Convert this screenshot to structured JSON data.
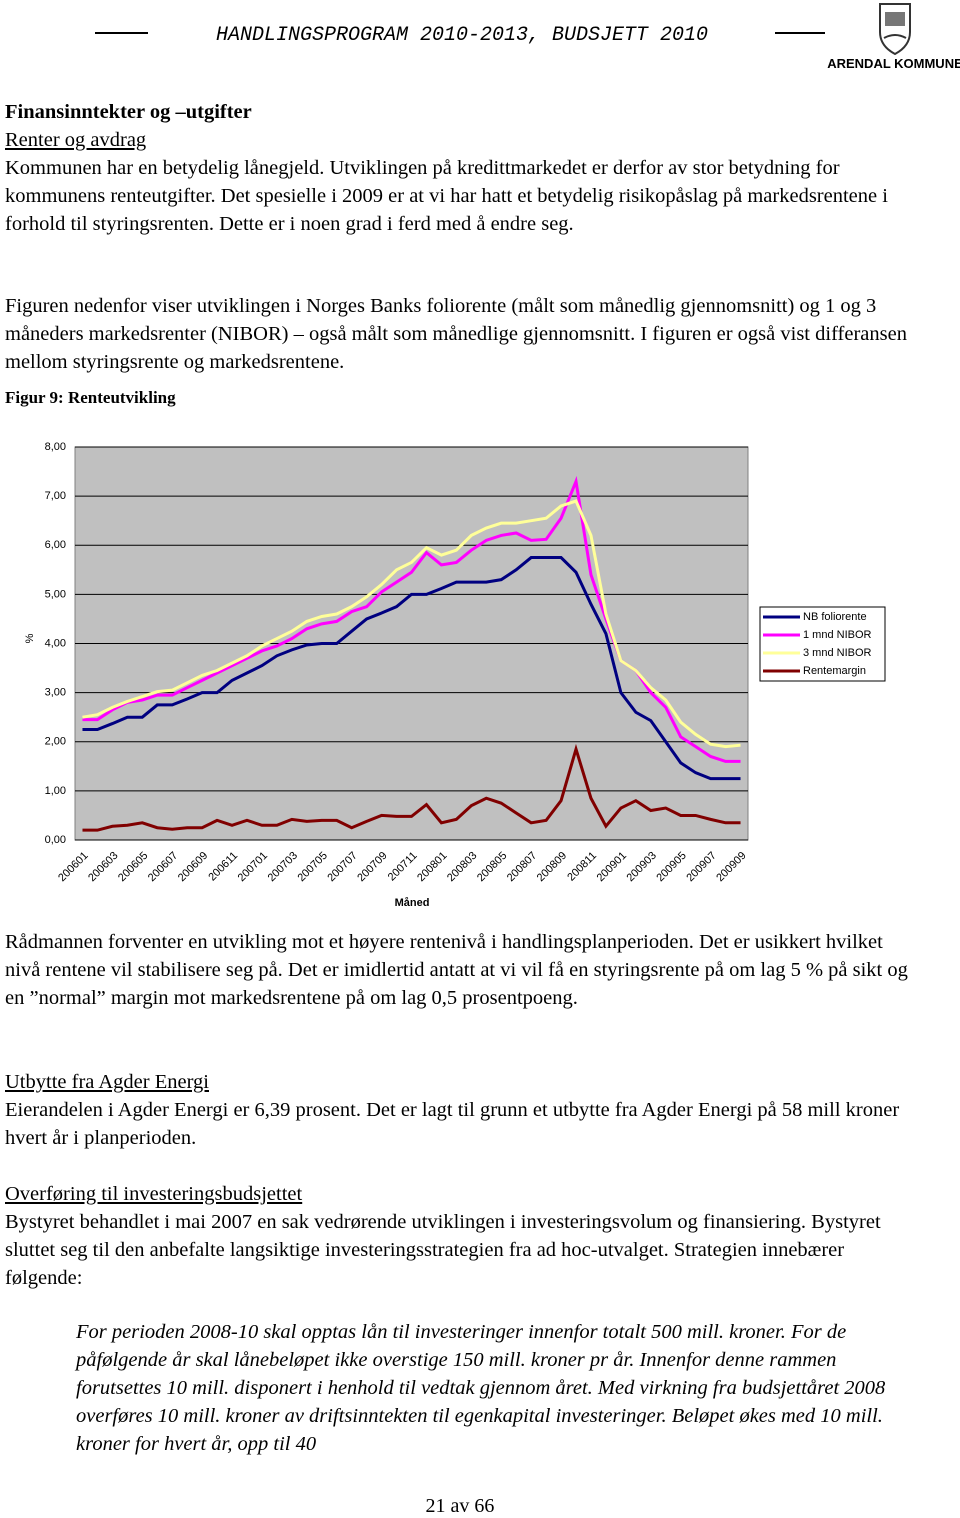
{
  "header": {
    "title": "HANDLINGSPROGRAM 2010-2013, BUDSJETT 2010",
    "logo_text": "ARENDAL KOMMUNE"
  },
  "heading": "Finansinntekter og –utgifter",
  "subheading": "Renter og avdrag",
  "paragraphs": [
    "Kommunen har en betydelig lånegjeld. Utviklingen på kredittmarkedet er derfor av stor betydning for kommunens renteutgifter. Det spesielle i 2009 er at vi har hatt et betydelig risikopåslag på markedsrentene i forhold til styringsrenten. Dette er i noen grad i ferd med å endre seg.",
    "Figuren nedenfor viser utviklingen i Norges Banks foliorente (målt som månedlig gjennomsnitt) og 1 og 3 måneders markedsrenter (NIBOR) – også målt som månedlige gjennomsnitt. I figuren er også vist differansen mellom styringsrente og markedsrentene."
  ],
  "figure_caption": "Figur 9: Renteutvikling",
  "chart_data": {
    "type": "line",
    "y_label": "%",
    "x_label": "Måned",
    "legend": "right",
    "grid": true,
    "plot_background": "#c0c0c0",
    "categories": [
      "200601",
      null,
      "200603",
      null,
      "200605",
      null,
      "200607",
      null,
      "200609",
      null,
      "200611",
      null,
      "200701",
      null,
      "200703",
      null,
      "200705",
      null,
      "200707",
      null,
      "200709",
      null,
      "200711",
      null,
      "200801",
      null,
      "200803",
      null,
      "200805",
      null,
      "200807",
      null,
      "200809",
      null,
      "200811",
      null,
      "200901",
      null,
      "200903",
      null,
      "200905",
      null,
      "200907",
      null,
      "200909"
    ],
    "ylim": [
      0,
      8
    ],
    "yticks": [
      {
        "value": 0,
        "label": "0,00"
      },
      {
        "value": 1,
        "label": "1,00"
      },
      {
        "value": 2,
        "label": "2,00"
      },
      {
        "value": 3,
        "label": "3,00"
      },
      {
        "value": 4,
        "label": "4,00"
      },
      {
        "value": 5,
        "label": "5,00"
      },
      {
        "value": 6,
        "label": "6,00"
      },
      {
        "value": 7,
        "label": "7,00"
      },
      {
        "value": 8,
        "label": "8,00"
      }
    ],
    "series": [
      {
        "name": "NB foliorente",
        "color": "#000080",
        "values": [
          2.25,
          2.25,
          2.37,
          2.5,
          2.5,
          2.75,
          2.75,
          2.87,
          3.0,
          3.0,
          3.25,
          3.4,
          3.55,
          3.75,
          3.87,
          3.97,
          4.0,
          4.0,
          4.25,
          4.5,
          4.62,
          4.75,
          5.0,
          5.0,
          5.12,
          5.25,
          5.25,
          5.25,
          5.3,
          5.5,
          5.75,
          5.75,
          5.75,
          5.45,
          4.8,
          4.2,
          3.0,
          2.6,
          2.43,
          2.0,
          1.57,
          1.37,
          1.25,
          1.25,
          1.25
        ]
      },
      {
        "name": "1 mnd NIBOR",
        "color": "#ff00ff",
        "values": [
          2.45,
          2.45,
          2.65,
          2.8,
          2.85,
          2.95,
          2.95,
          3.1,
          3.25,
          3.4,
          3.55,
          3.7,
          3.85,
          3.95,
          4.1,
          4.3,
          4.4,
          4.45,
          4.65,
          4.75,
          5.05,
          5.25,
          5.45,
          5.85,
          5.6,
          5.65,
          5.9,
          6.1,
          6.2,
          6.25,
          6.1,
          6.12,
          6.55,
          7.3,
          5.4,
          4.5,
          3.65,
          3.45,
          3.0,
          2.7,
          2.1,
          1.9,
          1.7,
          1.6,
          1.6
        ]
      },
      {
        "name": "3 mnd NIBOR",
        "color": "#ffff99",
        "values": [
          2.5,
          2.55,
          2.7,
          2.82,
          2.92,
          3.02,
          3.05,
          3.2,
          3.35,
          3.45,
          3.6,
          3.75,
          3.95,
          4.1,
          4.25,
          4.45,
          4.55,
          4.6,
          4.75,
          4.95,
          5.2,
          5.5,
          5.65,
          5.95,
          5.8,
          5.9,
          6.2,
          6.35,
          6.45,
          6.45,
          6.5,
          6.55,
          6.8,
          6.9,
          6.2,
          4.6,
          3.65,
          3.45,
          3.1,
          2.85,
          2.4,
          2.15,
          1.95,
          1.9,
          1.93
        ]
      },
      {
        "name": "Rentemargin",
        "color": "#800000",
        "values": [
          0.2,
          0.2,
          0.28,
          0.3,
          0.35,
          0.25,
          0.22,
          0.25,
          0.25,
          0.4,
          0.3,
          0.4,
          0.3,
          0.3,
          0.42,
          0.38,
          0.4,
          0.4,
          0.25,
          0.38,
          0.5,
          0.48,
          0.48,
          0.72,
          0.35,
          0.42,
          0.7,
          0.85,
          0.75,
          0.55,
          0.35,
          0.4,
          0.8,
          1.85,
          0.85,
          0.28,
          0.65,
          0.8,
          0.6,
          0.65,
          0.5,
          0.5,
          0.42,
          0.35,
          0.35
        ]
      }
    ]
  },
  "paragraph_after_chart": "Rådmannen forventer en utvikling mot et høyere rentenivå i handlingsplanperioden. Det er usikkert hvilket nivå rentene vil stabilisere seg på. Det er imidlertid antatt at vi vil få en styringsrente på om lag 5 % på sikt og en ”normal” margin mot markedsrentene på om lag 0,5 prosentpoeng.",
  "sections": [
    {
      "title": "Utbytte fra Agder Energi",
      "text": "Eierandelen i Agder Energi er 6,39 prosent. Det er lagt til grunn et utbytte fra Agder Energi på 58 mill kroner hvert år i planperioden."
    },
    {
      "title": "Overføring til investeringsbudsjettet",
      "text": "Bystyret behandlet i mai 2007 en sak vedrørende utviklingen i investeringsvolum og finansiering. Bystyret sluttet seg til den anbefalte langsiktige investeringsstrategien fra ad hoc-utvalget. Strategien innebærer følgende:"
    }
  ],
  "quote": "For perioden 2008-10 skal opptas lån til investeringer innenfor totalt 500 mill. kroner. For de påfølgende år skal lånebeløpet ikke overstige 150 mill. kroner pr år. Innenfor denne rammen forutsettes 10 mill. disponert i henhold til vedtak gjennom året. Med virkning fra budsjettåret 2008 overføres 10 mill. kroner av driftsinntekten til egenkapital investeringer. Beløpet økes med 10 mill. kroner for hvert år, opp til 40",
  "footer": "21 av 66"
}
